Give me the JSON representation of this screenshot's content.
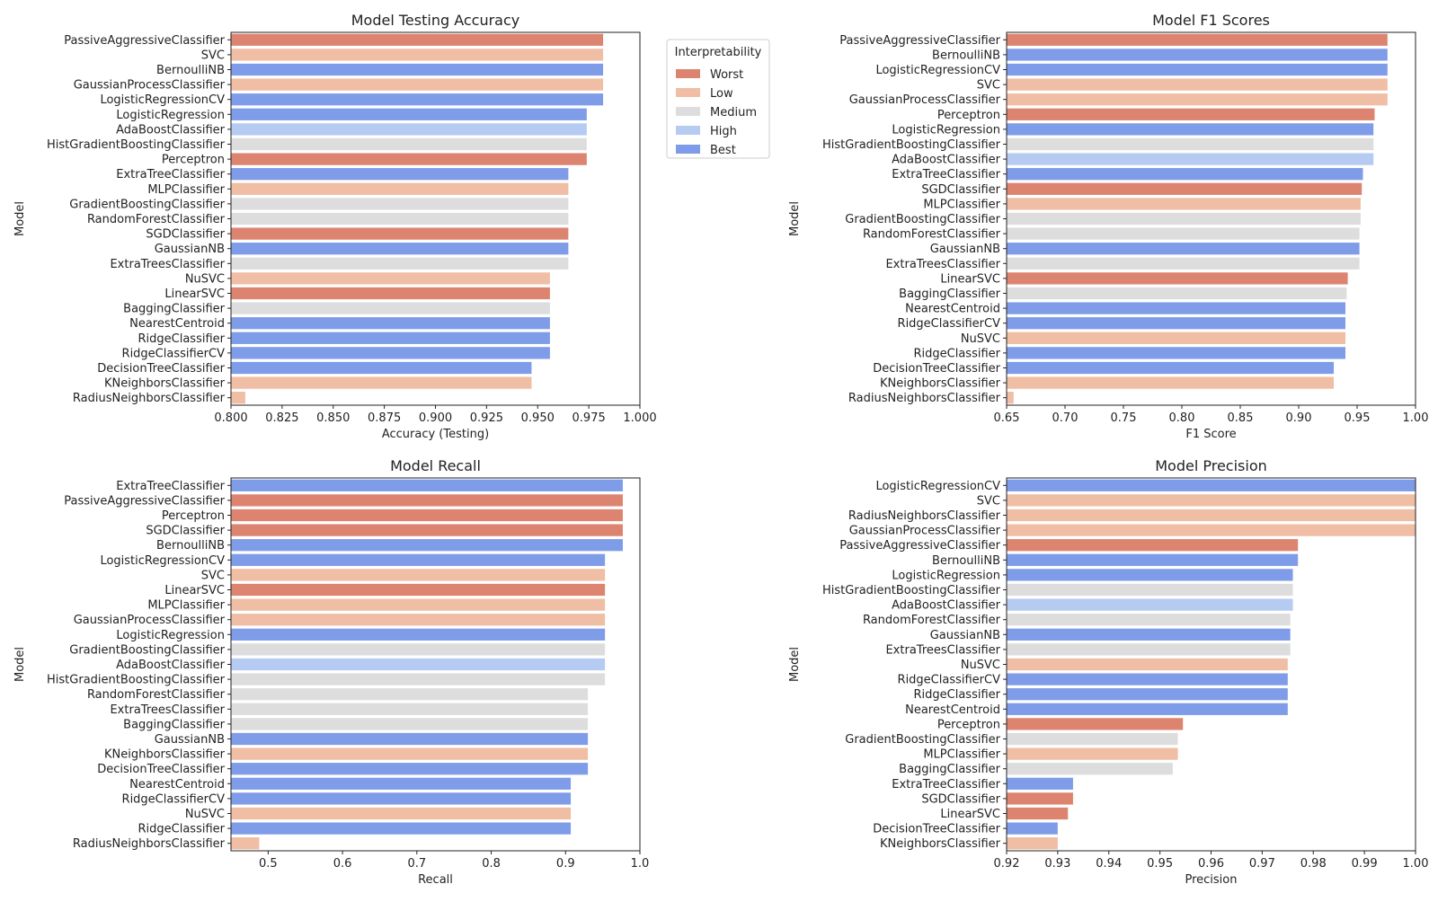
{
  "colors": {
    "Worst": "#dd8470",
    "Low": "#f0bda5",
    "Medium": "#dddddd",
    "High": "#b5cbf2",
    "Best": "#7f9ce8"
  },
  "legend": {
    "title": "Interpretability",
    "entries": [
      "Worst",
      "Low",
      "Medium",
      "High",
      "Best"
    ]
  },
  "interpretability": {
    "PassiveAggressiveClassifier": "Worst",
    "SVC": "Low",
    "BernoulliNB": "Best",
    "GaussianProcessClassifier": "Low",
    "LogisticRegressionCV": "Best",
    "LogisticRegression": "Best",
    "AdaBoostClassifier": "High",
    "HistGradientBoostingClassifier": "Medium",
    "Perceptron": "Worst",
    "ExtraTreeClassifier": "Best",
    "MLPClassifier": "Low",
    "GradientBoostingClassifier": "Medium",
    "RandomForestClassifier": "Medium",
    "SGDClassifier": "Worst",
    "GaussianNB": "Best",
    "ExtraTreesClassifier": "Medium",
    "NuSVC": "Low",
    "LinearSVC": "Worst",
    "BaggingClassifier": "Medium",
    "NearestCentroid": "Best",
    "RidgeClassifier": "Best",
    "RidgeClassifierCV": "Best",
    "DecisionTreeClassifier": "Best",
    "KNeighborsClassifier": "Low",
    "RadiusNeighborsClassifier": "Low"
  },
  "chart_data": [
    {
      "type": "bar",
      "orientation": "horizontal",
      "title": "Model Testing Accuracy",
      "xlabel": "Accuracy (Testing)",
      "ylabel": "Model",
      "xlim": [
        0.8,
        1.0
      ],
      "xticks": [
        "0.800",
        "0.825",
        "0.850",
        "0.875",
        "0.900",
        "0.925",
        "0.950",
        "0.975",
        "1.000"
      ],
      "legend": "top-right outside",
      "categories": [
        "PassiveAggressiveClassifier",
        "SVC",
        "BernoulliNB",
        "GaussianProcessClassifier",
        "LogisticRegressionCV",
        "LogisticRegression",
        "AdaBoostClassifier",
        "HistGradientBoostingClassifier",
        "Perceptron",
        "ExtraTreeClassifier",
        "MLPClassifier",
        "GradientBoostingClassifier",
        "RandomForestClassifier",
        "SGDClassifier",
        "GaussianNB",
        "ExtraTreesClassifier",
        "NuSVC",
        "LinearSVC",
        "BaggingClassifier",
        "NearestCentroid",
        "RidgeClassifier",
        "RidgeClassifierCV",
        "DecisionTreeClassifier",
        "KNeighborsClassifier",
        "RadiusNeighborsClassifier"
      ],
      "values": [
        0.982,
        0.982,
        0.982,
        0.982,
        0.982,
        0.974,
        0.974,
        0.974,
        0.974,
        0.965,
        0.965,
        0.965,
        0.965,
        0.965,
        0.965,
        0.965,
        0.956,
        0.956,
        0.956,
        0.956,
        0.956,
        0.956,
        0.947,
        0.947,
        0.807
      ]
    },
    {
      "type": "bar",
      "orientation": "horizontal",
      "title": "Model F1 Scores",
      "xlabel": "F1 Score",
      "ylabel": "Model",
      "xlim": [
        0.65,
        1.0
      ],
      "xticks": [
        "0.65",
        "0.70",
        "0.75",
        "0.80",
        "0.85",
        "0.90",
        "0.95",
        "1.00"
      ],
      "categories": [
        "PassiveAggressiveClassifier",
        "BernoulliNB",
        "LogisticRegressionCV",
        "SVC",
        "GaussianProcessClassifier",
        "Perceptron",
        "LogisticRegression",
        "HistGradientBoostingClassifier",
        "AdaBoostClassifier",
        "ExtraTreeClassifier",
        "SGDClassifier",
        "MLPClassifier",
        "GradientBoostingClassifier",
        "RandomForestClassifier",
        "GaussianNB",
        "ExtraTreesClassifier",
        "LinearSVC",
        "BaggingClassifier",
        "NearestCentroid",
        "RidgeClassifierCV",
        "NuSVC",
        "RidgeClassifier",
        "DecisionTreeClassifier",
        "KNeighborsClassifier",
        "RadiusNeighborsClassifier"
      ],
      "values": [
        0.976,
        0.976,
        0.976,
        0.976,
        0.976,
        0.965,
        0.964,
        0.964,
        0.964,
        0.955,
        0.954,
        0.953,
        0.953,
        0.952,
        0.952,
        0.952,
        0.942,
        0.941,
        0.94,
        0.94,
        0.94,
        0.94,
        0.93,
        0.93,
        0.656
      ]
    },
    {
      "type": "bar",
      "orientation": "horizontal",
      "title": "Model Recall",
      "xlabel": "Recall",
      "ylabel": "Model",
      "xlim": [
        0.45,
        1.0
      ],
      "xticks": [
        "0.5",
        "0.6",
        "0.7",
        "0.8",
        "0.9",
        "1.0"
      ],
      "categories": [
        "ExtraTreeClassifier",
        "PassiveAggressiveClassifier",
        "Perceptron",
        "SGDClassifier",
        "BernoulliNB",
        "LogisticRegressionCV",
        "SVC",
        "LinearSVC",
        "MLPClassifier",
        "GaussianProcessClassifier",
        "LogisticRegression",
        "GradientBoostingClassifier",
        "AdaBoostClassifier",
        "HistGradientBoostingClassifier",
        "RandomForestClassifier",
        "ExtraTreesClassifier",
        "BaggingClassifier",
        "GaussianNB",
        "KNeighborsClassifier",
        "DecisionTreeClassifier",
        "NearestCentroid",
        "RidgeClassifierCV",
        "NuSVC",
        "RidgeClassifier",
        "RadiusNeighborsClassifier"
      ],
      "values": [
        0.977,
        0.977,
        0.977,
        0.977,
        0.977,
        0.953,
        0.953,
        0.953,
        0.953,
        0.953,
        0.953,
        0.953,
        0.953,
        0.953,
        0.93,
        0.93,
        0.93,
        0.93,
        0.93,
        0.93,
        0.907,
        0.907,
        0.907,
        0.907,
        0.488
      ]
    },
    {
      "type": "bar",
      "orientation": "horizontal",
      "title": "Model Precision",
      "xlabel": "Precision",
      "ylabel": "Model",
      "xlim": [
        0.92,
        1.0
      ],
      "xticks": [
        "0.92",
        "0.93",
        "0.94",
        "0.95",
        "0.96",
        "0.97",
        "0.98",
        "0.99",
        "1.00"
      ],
      "categories": [
        "LogisticRegressionCV",
        "SVC",
        "RadiusNeighborsClassifier",
        "GaussianProcessClassifier",
        "PassiveAggressiveClassifier",
        "BernoulliNB",
        "LogisticRegression",
        "HistGradientBoostingClassifier",
        "AdaBoostClassifier",
        "RandomForestClassifier",
        "GaussianNB",
        "ExtraTreesClassifier",
        "NuSVC",
        "RidgeClassifierCV",
        "RidgeClassifier",
        "NearestCentroid",
        "Perceptron",
        "GradientBoostingClassifier",
        "MLPClassifier",
        "BaggingClassifier",
        "ExtraTreeClassifier",
        "SGDClassifier",
        "LinearSVC",
        "DecisionTreeClassifier",
        "KNeighborsClassifier"
      ],
      "values": [
        1.0,
        1.0,
        1.0,
        1.0,
        0.977,
        0.977,
        0.976,
        0.976,
        0.976,
        0.9755,
        0.9755,
        0.9755,
        0.975,
        0.975,
        0.975,
        0.975,
        0.9545,
        0.9535,
        0.9535,
        0.9525,
        0.933,
        0.933,
        0.932,
        0.93,
        0.93
      ]
    }
  ]
}
